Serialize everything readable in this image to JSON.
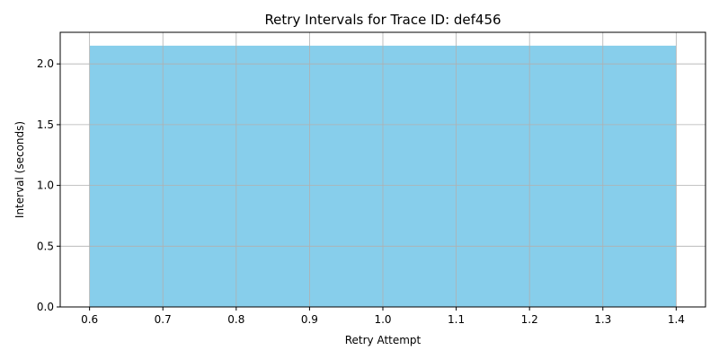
{
  "chart_data": {
    "type": "bar",
    "title": "Retry Intervals for Trace ID: def456",
    "xlabel": "Retry Attempt",
    "ylabel": "Interval (seconds)",
    "x": [
      1
    ],
    "values": [
      2.15
    ],
    "bar_width": 0.8,
    "xlim": [
      0.56,
      1.44
    ],
    "ylim": [
      0,
      2.26
    ],
    "xticks": [
      "0.6",
      "0.7",
      "0.8",
      "0.9",
      "1.0",
      "1.1",
      "1.2",
      "1.3",
      "1.4"
    ],
    "yticks": [
      "0.0",
      "0.5",
      "1.0",
      "1.5",
      "2.0"
    ],
    "grid": true,
    "bar_color": "#87CEEB",
    "legend": "none"
  }
}
